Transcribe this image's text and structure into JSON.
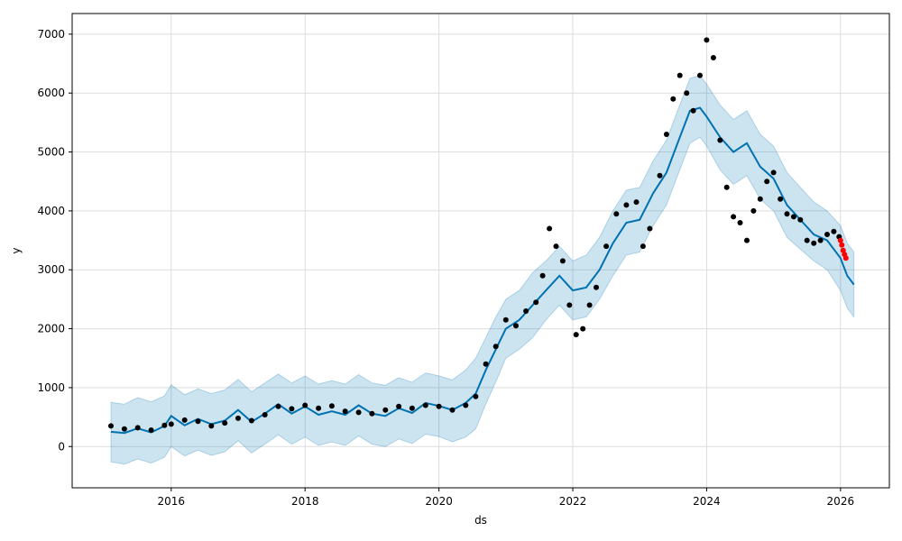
{
  "chart_data": {
    "type": "scatter",
    "title": "",
    "xlabel": "ds",
    "ylabel": "y",
    "xlim": [
      2014.52,
      2026.73
    ],
    "ylim": [
      -700,
      7350
    ],
    "x_ticks": [
      2016,
      2018,
      2020,
      2022,
      2024,
      2026
    ],
    "x_tick_labels": [
      "2016",
      "2018",
      "2020",
      "2022",
      "2024",
      "2026"
    ],
    "y_ticks": [
      0,
      1000,
      2000,
      3000,
      4000,
      5000,
      6000,
      7000
    ],
    "y_tick_labels": [
      "0",
      "1000",
      "2000",
      "3000",
      "4000",
      "5000",
      "6000",
      "7000"
    ],
    "grid": true,
    "legend": "none",
    "colors": {
      "observed": "#000000",
      "forecast": "#0072B2",
      "interval": "#0072B2",
      "recent": "#ff0000",
      "grid": "#dddddd"
    },
    "series": [
      {
        "role": "forecast",
        "x": [
          2015.1,
          2015.3,
          2015.5,
          2015.7,
          2015.9,
          2016.0,
          2016.2,
          2016.4,
          2016.6,
          2016.8,
          2017.0,
          2017.2,
          2017.4,
          2017.6,
          2017.8,
          2018.0,
          2018.2,
          2018.4,
          2018.6,
          2018.8,
          2019.0,
          2019.2,
          2019.4,
          2019.6,
          2019.8,
          2020.0,
          2020.2,
          2020.4,
          2020.55,
          2020.7,
          2020.85,
          2021.0,
          2021.2,
          2021.4,
          2021.6,
          2021.8,
          2022.0,
          2022.2,
          2022.4,
          2022.6,
          2022.8,
          2023.0,
          2023.2,
          2023.4,
          2023.6,
          2023.75,
          2023.9,
          2024.0,
          2024.2,
          2024.4,
          2024.6,
          2024.8,
          2025.0,
          2025.2,
          2025.4,
          2025.6,
          2025.8,
          2026.0,
          2026.1,
          2026.2
        ],
        "yhat": [
          250,
          230,
          310,
          240,
          350,
          520,
          360,
          470,
          380,
          440,
          620,
          420,
          560,
          720,
          560,
          680,
          540,
          600,
          540,
          700,
          560,
          520,
          650,
          570,
          740,
          690,
          620,
          740,
          900,
          1300,
          1650,
          2000,
          2150,
          2400,
          2650,
          2900,
          2650,
          2700,
          3000,
          3450,
          3800,
          3850,
          4300,
          4650,
          5250,
          5700,
          5750,
          5600,
          5250,
          5000,
          5150,
          4750,
          4550,
          4100,
          3850,
          3600,
          3500,
          3200,
          2900,
          2750
        ],
        "yhat_lower": [
          -260,
          -300,
          -210,
          -280,
          -180,
          0,
          -160,
          -60,
          -150,
          -90,
          100,
          -110,
          40,
          200,
          40,
          160,
          20,
          80,
          20,
          180,
          40,
          0,
          130,
          50,
          210,
          170,
          80,
          160,
          300,
          720,
          1100,
          1500,
          1650,
          1850,
          2150,
          2400,
          2150,
          2200,
          2500,
          2900,
          3250,
          3300,
          3750,
          4100,
          4700,
          5150,
          5250,
          5100,
          4700,
          4450,
          4600,
          4200,
          4000,
          3550,
          3350,
          3150,
          3000,
          2650,
          2350,
          2200
        ],
        "yhat_upper": [
          750,
          720,
          830,
          760,
          860,
          1050,
          880,
          980,
          900,
          960,
          1140,
          930,
          1080,
          1230,
          1080,
          1200,
          1060,
          1120,
          1060,
          1220,
          1080,
          1040,
          1170,
          1090,
          1250,
          1200,
          1130,
          1300,
          1500,
          1850,
          2200,
          2500,
          2650,
          2950,
          3150,
          3400,
          3150,
          3250,
          3550,
          4000,
          4350,
          4400,
          4850,
          5200,
          5800,
          6250,
          6300,
          6150,
          5800,
          5550,
          5700,
          5300,
          5100,
          4650,
          4400,
          4150,
          4000,
          3750,
          3450,
          3300
        ]
      },
      {
        "role": "observed",
        "x": [
          2015.1,
          2015.3,
          2015.5,
          2015.7,
          2015.9,
          2016.0,
          2016.2,
          2016.4,
          2016.6,
          2016.8,
          2017.0,
          2017.2,
          2017.4,
          2017.6,
          2017.8,
          2018.0,
          2018.2,
          2018.4,
          2018.6,
          2018.8,
          2019.0,
          2019.2,
          2019.4,
          2019.6,
          2019.8,
          2020.0,
          2020.2,
          2020.4,
          2020.55,
          2020.7,
          2020.85,
          2021.0,
          2021.15,
          2021.3,
          2021.45,
          2021.55,
          2021.65,
          2021.75,
          2021.85,
          2021.95,
          2022.05,
          2022.15,
          2022.25,
          2022.35,
          2022.5,
          2022.65,
          2022.8,
          2022.95,
          2023.05,
          2023.15,
          2023.3,
          2023.4,
          2023.5,
          2023.6,
          2023.7,
          2023.8,
          2023.9,
          2024.0,
          2024.1,
          2024.2,
          2024.3,
          2024.4,
          2024.5,
          2024.6,
          2024.7,
          2024.8,
          2024.9,
          2025.0,
          2025.1,
          2025.2,
          2025.3,
          2025.4,
          2025.5,
          2025.6,
          2025.7,
          2025.8,
          2025.9,
          2025.98
        ],
        "y": [
          350,
          300,
          320,
          280,
          360,
          380,
          450,
          430,
          350,
          400,
          480,
          440,
          540,
          680,
          640,
          700,
          650,
          690,
          600,
          580,
          560,
          620,
          680,
          650,
          700,
          680,
          620,
          700,
          850,
          1400,
          1700,
          2150,
          2050,
          2300,
          2450,
          2900,
          3700,
          3400,
          3150,
          2400,
          1900,
          2000,
          2400,
          2700,
          3400,
          3950,
          4100,
          4150,
          3400,
          3700,
          4600,
          5300,
          5900,
          6300,
          6000,
          5700,
          6300,
          6900,
          6600,
          5200,
          4400,
          3900,
          3800,
          3500,
          4000,
          4200,
          4500,
          4650,
          4200,
          3950,
          3900,
          3850,
          3500,
          3450,
          3500,
          3600,
          3650,
          3560
        ]
      },
      {
        "role": "recent",
        "x": [
          2026.0,
          2026.02,
          2026.04,
          2026.06,
          2026.08
        ],
        "y": [
          3500,
          3420,
          3330,
          3260,
          3200
        ]
      }
    ]
  }
}
